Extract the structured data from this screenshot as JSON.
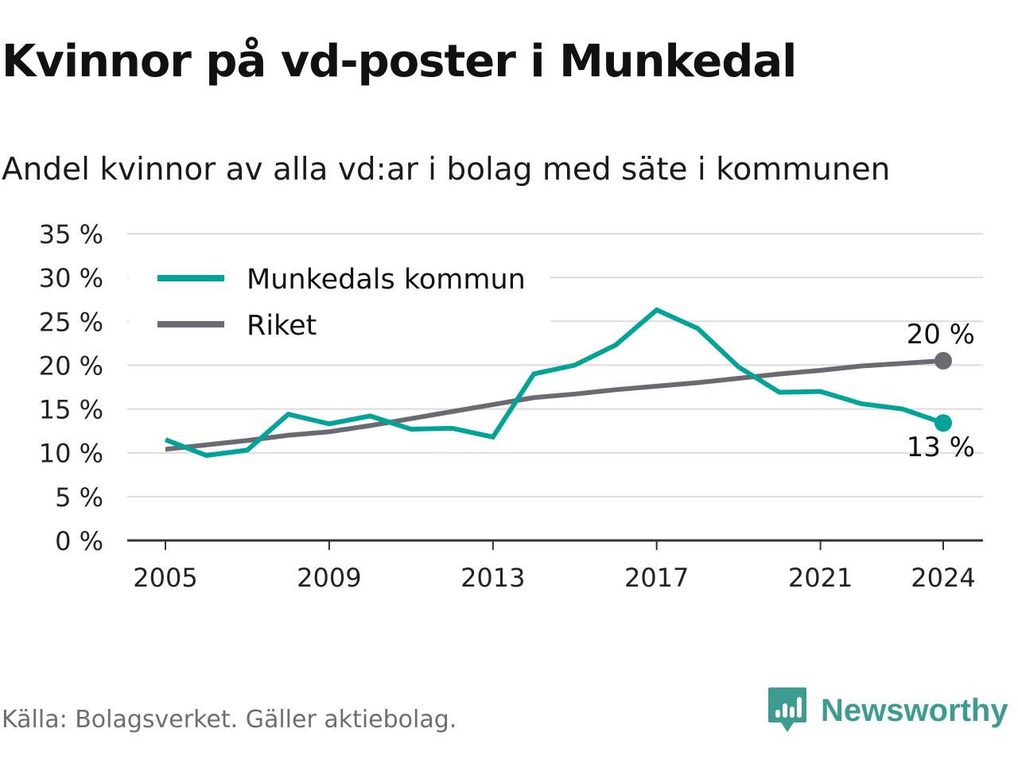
{
  "title": "Kvinnor på vd-poster i Munkedal",
  "subtitle": "Andel kvinnor av alla vd:ar i bolag med säte i kommunen",
  "source": "Källa: Bolagsverket. Gäller aktiebolag.",
  "brand": {
    "name": "Newsworthy",
    "color": "#3d9b8f",
    "icon": "newsworthy-logo-icon"
  },
  "chart_data": {
    "type": "line",
    "x": [
      2005,
      2006,
      2007,
      2008,
      2009,
      2010,
      2011,
      2012,
      2013,
      2014,
      2015,
      2016,
      2017,
      2018,
      2019,
      2020,
      2021,
      2022,
      2023,
      2024
    ],
    "series": [
      {
        "name": "Munkedals kommun",
        "color": "#00a398",
        "values": [
          11.5,
          9.7,
          10.3,
          14.4,
          13.3,
          14.2,
          12.7,
          12.8,
          11.8,
          19.0,
          20.0,
          22.3,
          26.3,
          24.2,
          19.8,
          16.9,
          17.0,
          15.6,
          15.0,
          13.4
        ],
        "end_label": "13 %"
      },
      {
        "name": "Riket",
        "color": "#6b6a72",
        "values": [
          10.4,
          10.9,
          11.4,
          12.0,
          12.4,
          13.1,
          13.9,
          14.7,
          15.5,
          16.3,
          16.7,
          17.2,
          17.6,
          18.0,
          18.5,
          19.0,
          19.4,
          19.9,
          20.2,
          20.5
        ],
        "end_label": "20 %"
      }
    ],
    "x_ticks": [
      "2005",
      "2009",
      "2013",
      "2017",
      "2021",
      "2024"
    ],
    "y_ticks": [
      "0 %",
      "5 %",
      "10 %",
      "15 %",
      "20 %",
      "25 %",
      "30 %",
      "35 %"
    ],
    "ylim": [
      0,
      35
    ],
    "xlim": [
      2004,
      2025
    ],
    "grid": true,
    "legend_position": "top-left"
  }
}
